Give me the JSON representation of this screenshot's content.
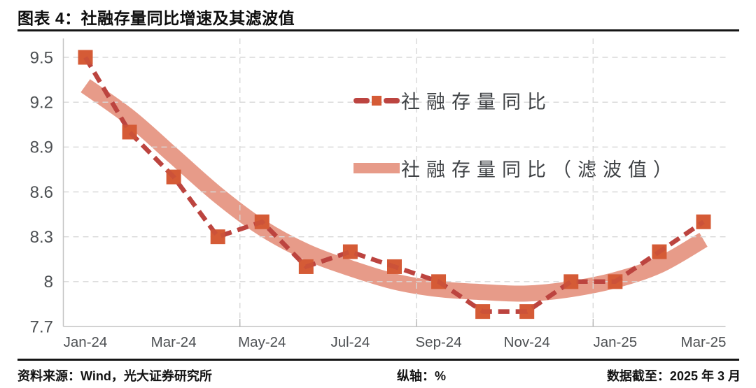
{
  "figure": {
    "title": "图表 4：社融存量同比增速及其滤波值",
    "footer": {
      "source": "资料来源：Wind，光大证券研究所",
      "axis_note": "纵轴：%",
      "data_cutoff": "数据截至：2025 年 3 月"
    }
  },
  "colors": {
    "series_line": "#bc4440",
    "series_marker": "#d55b36",
    "band": "#e79b89",
    "axis_line": "#c4c4c4",
    "gridline": "#d8d8d8",
    "tick_mark": "#adadad",
    "tick_text": "#4d5053",
    "legend_text": "#3e4144",
    "title_text": "#0d0d0d",
    "rule": "#151515"
  },
  "chart_data": {
    "type": "line",
    "x": [
      "Jan-24",
      "Feb-24",
      "Mar-24",
      "Apr-24",
      "May-24",
      "Jun-24",
      "Jul-24",
      "Aug-24",
      "Sep-24",
      "Oct-24",
      "Nov-24",
      "Dec-24",
      "Jan-25",
      "Feb-25",
      "Mar-25"
    ],
    "series": [
      {
        "name": "社融存量同比",
        "style": "dashed line with square markers",
        "values": [
          9.5,
          9.0,
          8.7,
          8.3,
          8.4,
          8.1,
          8.2,
          8.1,
          8.0,
          7.8,
          7.8,
          8.0,
          8.0,
          8.2,
          8.4
        ]
      },
      {
        "name": "社融存量同比（滤波值）",
        "style": "thick smooth filtered trend band",
        "values": [
          9.31,
          9.1,
          8.84,
          8.58,
          8.36,
          8.2,
          8.09,
          8.0,
          7.95,
          7.93,
          7.92,
          7.95,
          8.01,
          8.11,
          8.28
        ]
      }
    ],
    "x_tick_labels": [
      "Jan-24",
      "Mar-24",
      "May-24",
      "Jul-24",
      "Sep-24",
      "Nov-24",
      "Jan-25",
      "Mar-25"
    ],
    "y_ticks": [
      9.5,
      9.2,
      8.9,
      8.6,
      8.3,
      8,
      7.7
    ],
    "ylim": [
      7.7,
      9.63
    ],
    "unit": "%",
    "grid": "dashed",
    "legend_position": "inside top-right"
  }
}
